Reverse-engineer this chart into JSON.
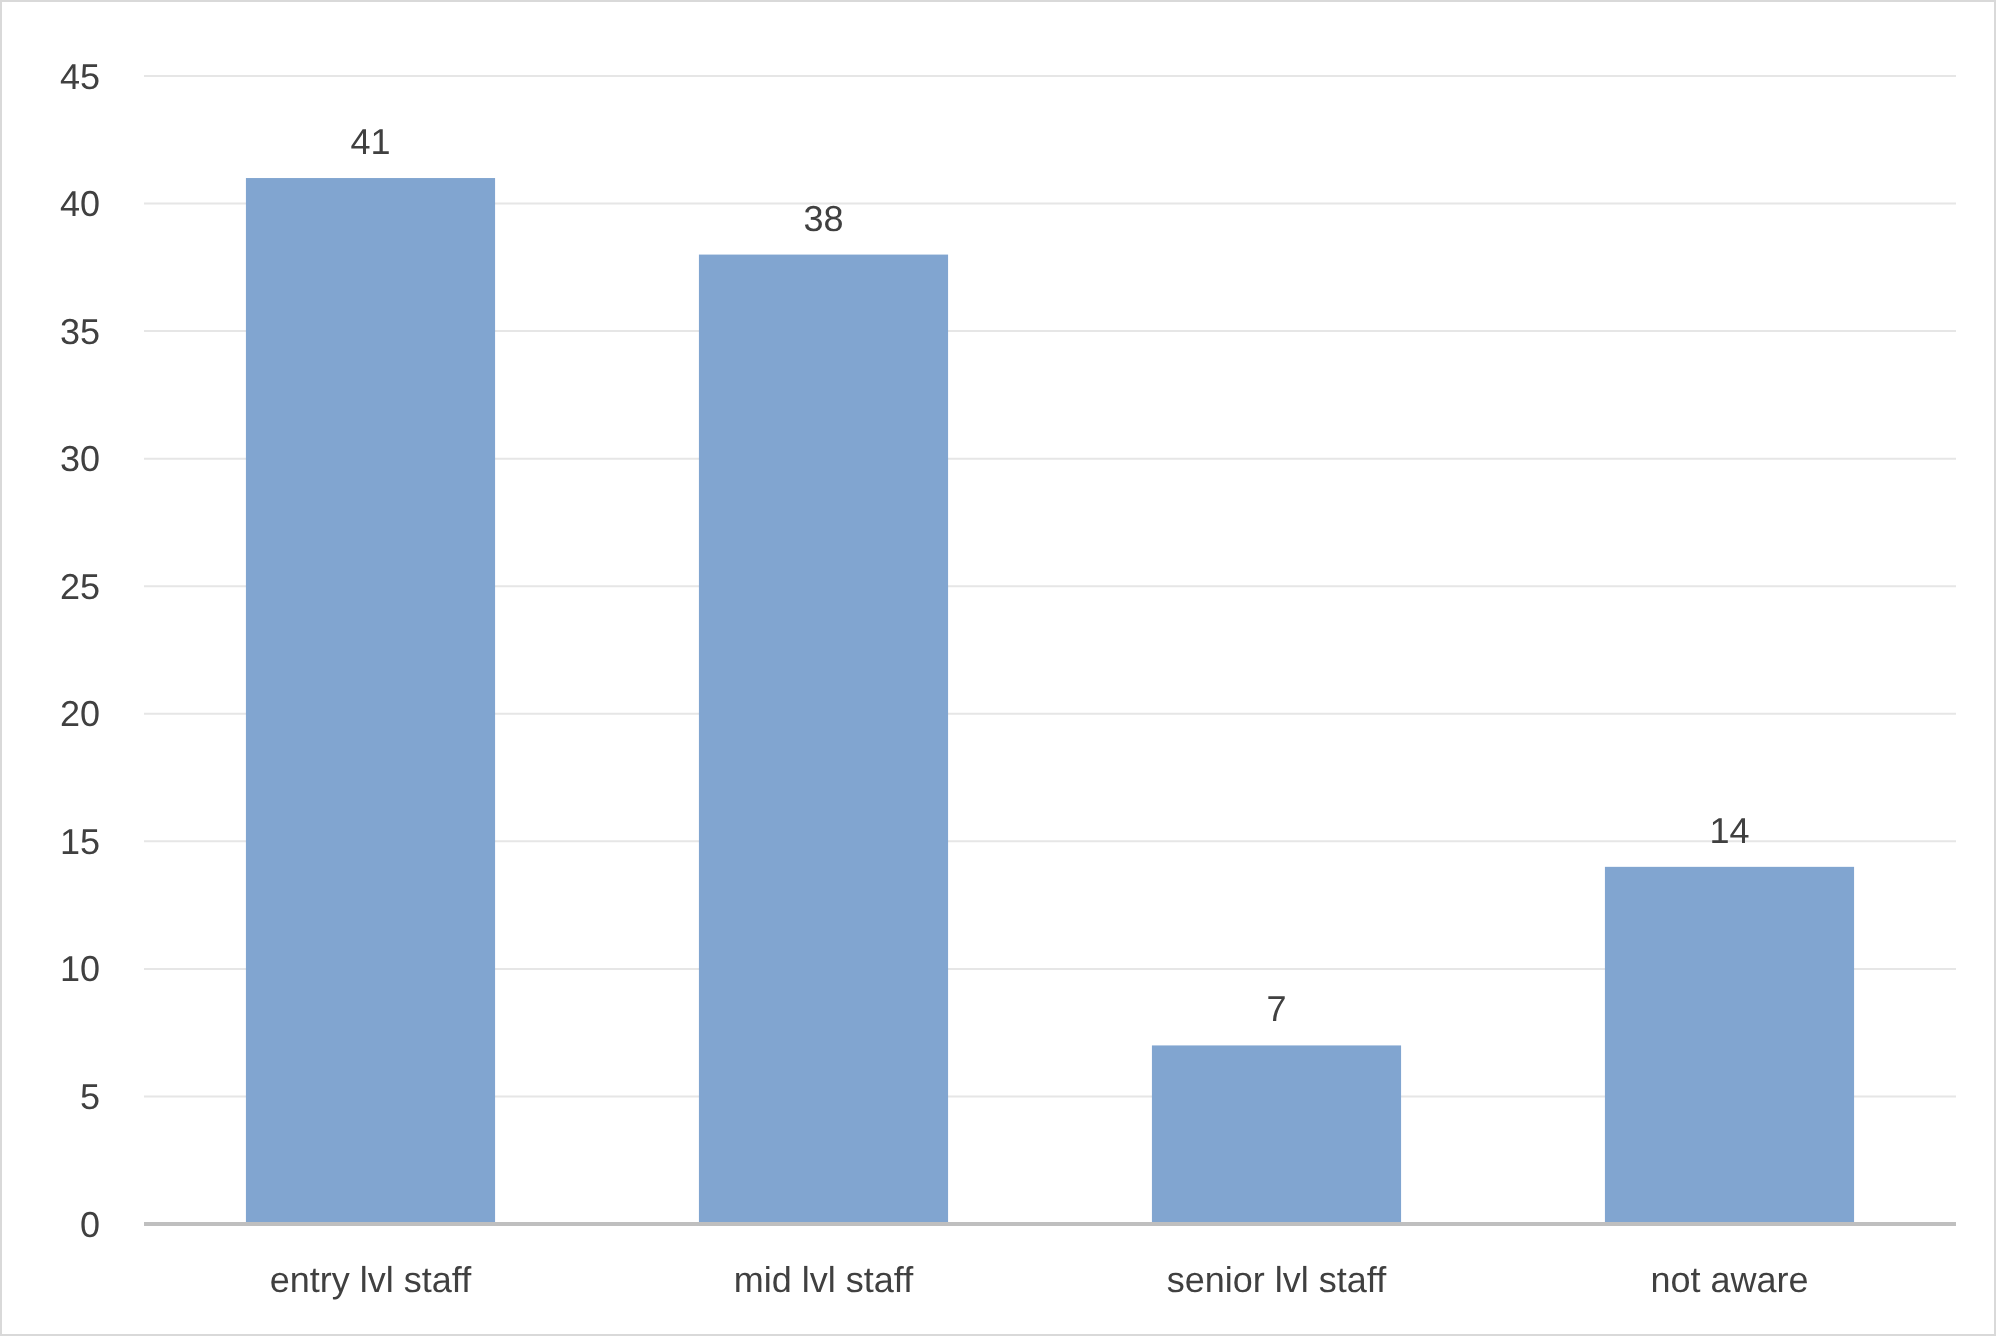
{
  "chart_data": {
    "type": "bar",
    "categories": [
      "entry lvl staff",
      "mid lvl staff",
      "senior lvl staff",
      "not aware"
    ],
    "values": [
      41,
      38,
      7,
      14
    ],
    "color": "#81a5d0",
    "ylim": [
      0,
      45
    ],
    "yticks": [
      0,
      5,
      10,
      15,
      20,
      25,
      30,
      35,
      40,
      45
    ],
    "grid": "y",
    "data_labels": true
  }
}
